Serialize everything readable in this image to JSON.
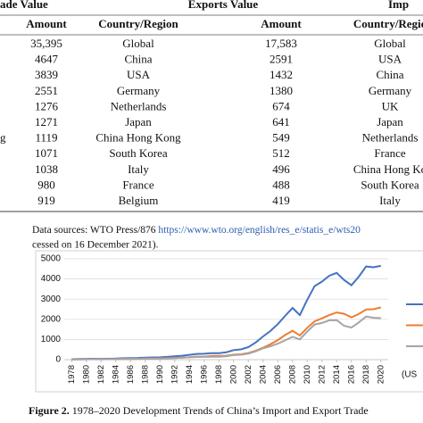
{
  "table": {
    "group_headers": [
      "ade Value",
      "Exports Value",
      "Imp"
    ],
    "columns": [
      "Amount",
      "Country/Region",
      "Amount",
      "Country/Regio"
    ],
    "side_fragment": "g",
    "rows": [
      [
        "35,395",
        "Global",
        "17,583",
        "Global"
      ],
      [
        "4647",
        "China",
        "2591",
        "USA"
      ],
      [
        "3839",
        "USA",
        "1432",
        "China"
      ],
      [
        "2551",
        "Germany",
        "1380",
        "Germany"
      ],
      [
        "1276",
        "Netherlands",
        "674",
        "UK"
      ],
      [
        "1271",
        "Japan",
        "641",
        "Japan"
      ],
      [
        "1119",
        "China Hong Kong",
        "549",
        "Netherlands"
      ],
      [
        "1071",
        "South Korea",
        "512",
        "France"
      ],
      [
        "1038",
        "Italy",
        "496",
        "China Hong Ko"
      ],
      [
        "980",
        "France",
        "488",
        "South Korea"
      ],
      [
        "919",
        "Belgium",
        "419",
        "Italy"
      ]
    ]
  },
  "note": {
    "text": "Data sources: WTO Press/876 ",
    "link": "https://www.wto.org/english/res_e/statis_e/wts20",
    "line2": "cessed on 16 December 2021)."
  },
  "chart_data": {
    "type": "line",
    "x": [
      1978,
      1979,
      1980,
      1981,
      1982,
      1983,
      1984,
      1985,
      1986,
      1987,
      1988,
      1989,
      1990,
      1991,
      1992,
      1993,
      1994,
      1995,
      1996,
      1997,
      1998,
      1999,
      2000,
      2001,
      2002,
      2003,
      2004,
      2005,
      2006,
      2007,
      2008,
      2009,
      2010,
      2011,
      2012,
      2013,
      2014,
      2015,
      2016,
      2017,
      2018,
      2019,
      2020
    ],
    "series": [
      {
        "color": "#4472c4",
        "values": [
          21,
          29,
          38,
          44,
          42,
          44,
          54,
          70,
          74,
          83,
          103,
          112,
          116,
          136,
          166,
          196,
          237,
          281,
          290,
          325,
          324,
          361,
          474,
          510,
          620,
          850,
          1150,
          1420,
          1760,
          2170,
          2560,
          2210,
          2970,
          3640,
          3870,
          4160,
          4300,
          3950,
          3690,
          4110,
          4620,
          4580,
          4650
        ]
      },
      {
        "color": "#ed7d31",
        "values": [
          10,
          14,
          18,
          22,
          22,
          22,
          26,
          27,
          31,
          39,
          48,
          53,
          62,
          72,
          85,
          92,
          121,
          149,
          151,
          183,
          184,
          195,
          249,
          266,
          326,
          438,
          593,
          762,
          969,
          1220,
          1430,
          1200,
          1578,
          1898,
          2049,
          2209,
          2342,
          2273,
          2098,
          2263,
          2487,
          2499,
          2590
        ]
      },
      {
        "color": "#a5a5a5",
        "values": [
          11,
          16,
          20,
          22,
          19,
          21,
          27,
          42,
          43,
          43,
          55,
          59,
          53,
          64,
          81,
          104,
          116,
          132,
          139,
          142,
          140,
          166,
          225,
          244,
          295,
          413,
          561,
          660,
          791,
          956,
          1132,
          1006,
          1396,
          1743,
          1818,
          1950,
          1959,
          1680,
          1588,
          1843,
          2135,
          2077,
          2056
        ]
      }
    ],
    "xlim": [
      1977,
      2021
    ],
    "xticks": [
      1978,
      1980,
      1982,
      1984,
      1986,
      1988,
      1990,
      1992,
      1994,
      1996,
      1998,
      2000,
      2002,
      2004,
      2006,
      2008,
      2010,
      2012,
      2014,
      2016,
      2018,
      2020
    ],
    "ylim": [
      0,
      5000
    ],
    "yticks": [
      0,
      1000,
      2000,
      3000,
      4000,
      5000
    ],
    "grid": true,
    "unit_label": "(US"
  },
  "caption": {
    "label": "Figure 2.",
    "text": " 1978–2020 Development Trends of China’s Import and Export Trade"
  }
}
